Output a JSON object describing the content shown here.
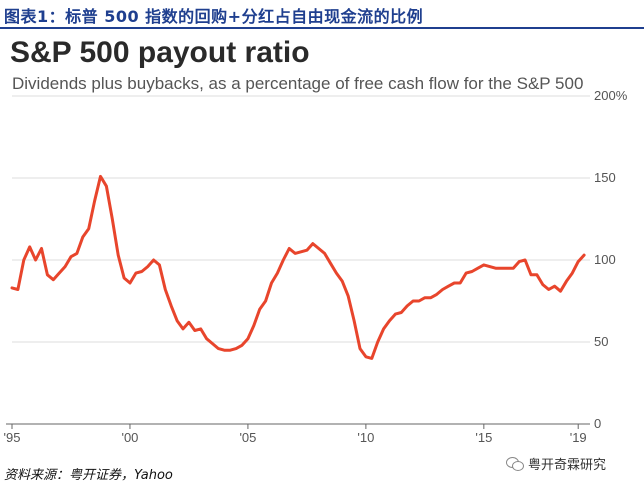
{
  "header": {
    "title": "图表1：标普 500 指数的回购+分红占自由现金流的比例"
  },
  "source": {
    "text": "资料来源：粤开证券，Yahoo"
  },
  "watermark": {
    "text": "粤开奇霖研究",
    "icon": "wechat-icon"
  },
  "colors": {
    "line": "#e8452c",
    "header": "#1f3f8f",
    "grid": "#dddddd"
  },
  "chart_data": {
    "type": "line",
    "title": "S&P 500 payout ratio",
    "subtitle": "Dividends plus buybacks, as a percentage of free cash flow for the S&P 500",
    "ylim": [
      0,
      200
    ],
    "xlim": [
      1995,
      2019.5
    ],
    "yticks": [
      0,
      50,
      100,
      150,
      200
    ],
    "ytick_labels": [
      "0",
      "50",
      "100",
      "150",
      "200%"
    ],
    "xticks": [
      1995,
      2000,
      2005,
      2010,
      2015,
      2019
    ],
    "xtick_labels": [
      "'95",
      "'00",
      "'05",
      "'10",
      "'15",
      "'19"
    ],
    "grid": true,
    "series": [
      {
        "x": [
          1995.0,
          1995.25,
          1995.5,
          1995.75,
          1996.0,
          1996.25,
          1996.5,
          1996.75,
          1997.0,
          1997.25,
          1997.5,
          1997.75,
          1998.0,
          1998.25,
          1998.5,
          1998.75,
          1999.0,
          1999.25,
          1999.5,
          1999.75,
          2000.0,
          2000.25,
          2000.5,
          2000.75,
          2001.0,
          2001.25,
          2001.5,
          2001.75,
          2002.0,
          2002.25,
          2002.5,
          2002.75,
          2003.0,
          2003.25,
          2003.5,
          2003.75,
          2004.0,
          2004.25,
          2004.5,
          2004.75,
          2005.0,
          2005.25,
          2005.5,
          2005.75,
          2006.0,
          2006.25,
          2006.5,
          2006.75,
          2007.0,
          2007.25,
          2007.5,
          2007.75,
          2008.0,
          2008.25,
          2008.5,
          2008.75,
          2009.0,
          2009.25,
          2009.5,
          2009.75,
          2010.0,
          2010.25,
          2010.5,
          2010.75,
          2011.0,
          2011.25,
          2011.5,
          2011.75,
          2012.0,
          2012.25,
          2012.5,
          2012.75,
          2013.0,
          2013.25,
          2013.5,
          2013.75,
          2014.0,
          2014.25,
          2014.5,
          2014.75,
          2015.0,
          2015.25,
          2015.5,
          2015.75,
          2016.0,
          2016.25,
          2016.5,
          2016.75,
          2017.0,
          2017.25,
          2017.5,
          2017.75,
          2018.0,
          2018.25,
          2018.5,
          2018.75,
          2019.0,
          2019.25
        ],
        "y": [
          83,
          82,
          100,
          108,
          100,
          107,
          91,
          88,
          92,
          96,
          102,
          104,
          114,
          119,
          136,
          151,
          145,
          125,
          103,
          89,
          86,
          92,
          93,
          96,
          100,
          97,
          82,
          72,
          63,
          58,
          62,
          57,
          58,
          52,
          49,
          46,
          45,
          45,
          46,
          48,
          52,
          60,
          70,
          75,
          86,
          92,
          100,
          107,
          104,
          105,
          106,
          110,
          107,
          104,
          98,
          92,
          87,
          78,
          63,
          46,
          41,
          40,
          50,
          58,
          63,
          67,
          68,
          72,
          75,
          75,
          77,
          77,
          79,
          82,
          84,
          86,
          86,
          92,
          93,
          95,
          97,
          96,
          95,
          95,
          95,
          95,
          99,
          100,
          91,
          91,
          85,
          82,
          84,
          81,
          87,
          92,
          99,
          103
        ]
      }
    ]
  }
}
